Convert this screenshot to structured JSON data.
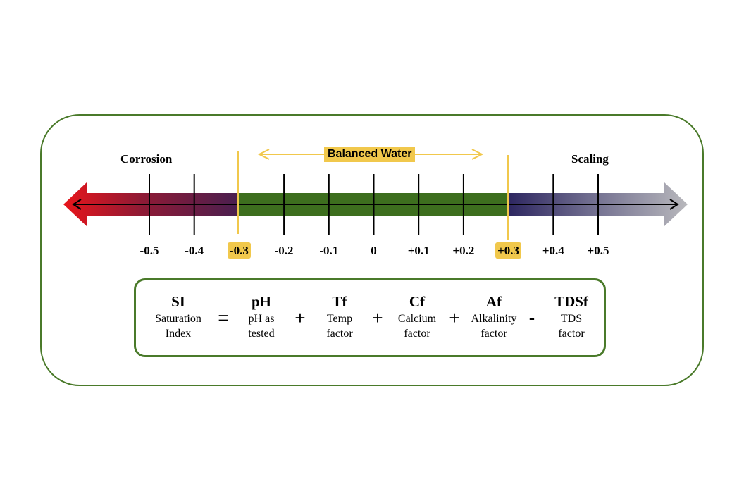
{
  "zones": {
    "corrosion": "Corrosion",
    "balanced": "Balanced Water",
    "scaling": "Scaling"
  },
  "scale": {
    "ticks": [
      "-0.5",
      "-0.4",
      "-0.3",
      "-0.2",
      "-0.1",
      "0",
      "+0.1",
      "+0.2",
      "+0.3",
      "+0.4",
      "+0.5"
    ],
    "highlighted": [
      "-0.3",
      "+0.3"
    ]
  },
  "formula": {
    "si": {
      "symbol": "SI",
      "desc": "Saturation Index"
    },
    "op_equals": "=",
    "ph": {
      "symbol": "pH",
      "desc": "pH as tested"
    },
    "op1": "+",
    "tf": {
      "symbol": "Tf",
      "desc": "Temp factor"
    },
    "op2": "+",
    "cf": {
      "symbol": "Cf",
      "desc": "Calcium factor"
    },
    "op3": "+",
    "af": {
      "symbol": "Af",
      "desc": "Alkalinity factor"
    },
    "op4": "-",
    "tdsf": {
      "symbol": "TDSf",
      "desc": "TDS factor"
    }
  },
  "colors": {
    "corrosion": "#e8151b",
    "balanced": "#3d6e1e",
    "purple": "#4a1f4f",
    "navy": "#2d2660",
    "scaling": "#b8b8bc",
    "highlight": "#f1c84c",
    "frame": "#4a7a2a"
  }
}
